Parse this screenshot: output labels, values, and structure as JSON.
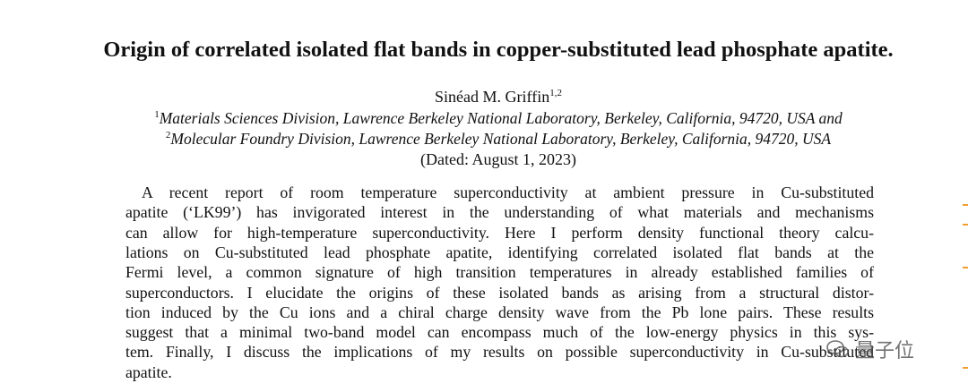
{
  "title": "Origin of correlated isolated flat bands in copper-substituted lead phosphate apatite.",
  "author": {
    "name": "Sinéad M. Griffin",
    "sup": "1,2"
  },
  "affiliations": [
    {
      "mark": "1",
      "text": "Materials Sciences Division, Lawrence Berkeley National Laboratory, Berkeley, California, 94720, USA and"
    },
    {
      "mark": "2",
      "text": "Molecular Foundry Division, Lawrence Berkeley National Laboratory, Berkeley, California, 94720, USA"
    }
  ],
  "dated": "(Dated: August 1, 2023)",
  "abstract": {
    "lines": [
      "A recent report of room temperature superconductivity at ambient pressure in Cu-substituted",
      "apatite (‘LK99’) has invigorated interest in the understanding of what materials and mechanisms",
      "can allow for high-temperature superconductivity. Here I perform density functional theory calcu-",
      "lations on Cu-substituted lead phosphate apatite, identifying correlated isolated flat bands at the",
      "Fermi level, a common signature of high transition temperatures in already established families of",
      "superconductors. I elucidate the origins of these isolated bands as arising from a structural distor-",
      "tion induced by the Cu ions and a chiral charge density wave from the Pb lone pairs. These results",
      "suggest that a minimal two-band model can encompass much of the low-energy physics in this sys-",
      "tem. Finally, I discuss the implications of my results on possible superconductivity in Cu-substituted",
      "apatite."
    ]
  },
  "watermark": "量子位"
}
